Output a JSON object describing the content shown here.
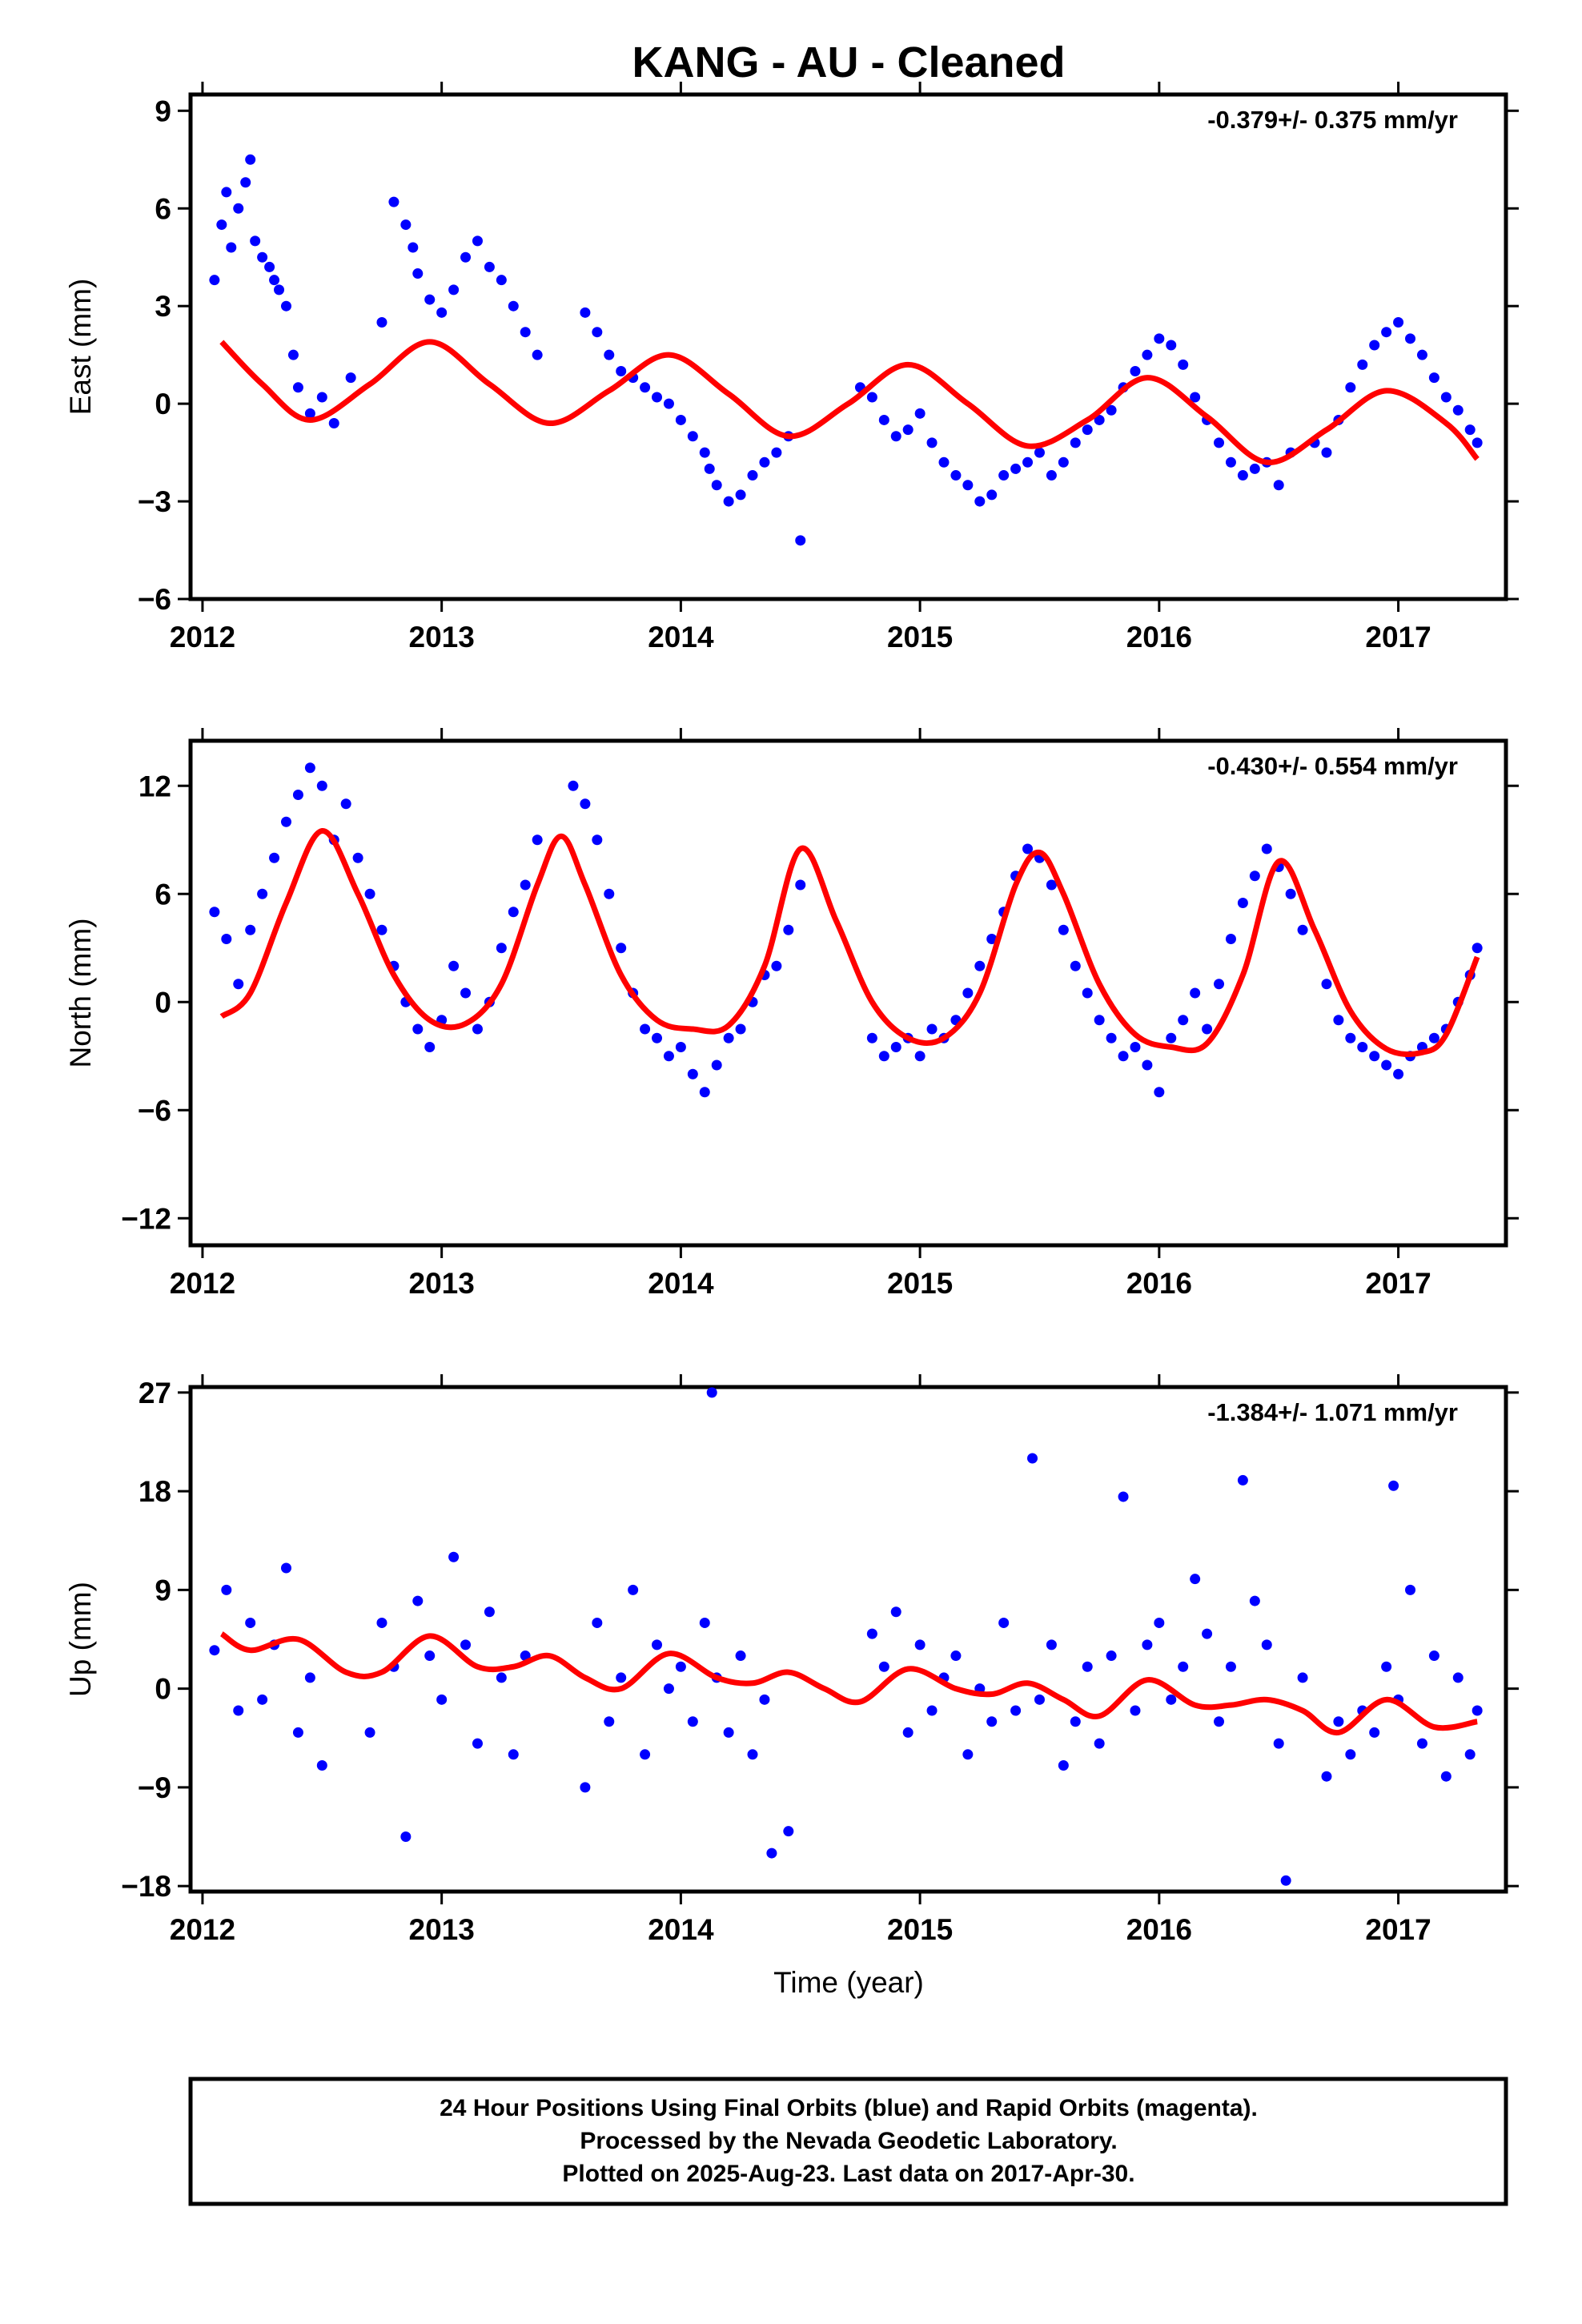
{
  "title": "KANG  - AU - Cleaned",
  "xlabel": "Time (year)",
  "footer": {
    "line1": "24 Hour Positions Using Final Orbits (blue) and Rapid Orbits (magenta).",
    "line2": "Processed by the Nevada Geodetic Laboratory.",
    "line3": "Plotted on 2025-Aug-23. Last data on 2017-Apr-30."
  },
  "colors": {
    "points": "#0000ff",
    "fit": "#ff0000",
    "frame": "#000000"
  },
  "chart_data": [
    {
      "type": "scatter",
      "ylabel": "East (mm)",
      "rate": "-0.379+/- 0.375 mm/yr",
      "xlim": [
        2011.95,
        2017.45
      ],
      "ylim": [
        -6,
        9.5
      ],
      "xticks": [
        2012,
        2013,
        2014,
        2015,
        2016,
        2017
      ],
      "yticks": [
        -6,
        -3,
        0,
        3,
        6,
        9
      ],
      "ytick_labels": [
        "−6",
        "−3",
        "0",
        "3",
        "6",
        "9"
      ],
      "series": [
        {
          "kind": "points",
          "x": [
            2012.05,
            2012.08,
            2012.1,
            2012.12,
            2012.15,
            2012.18,
            2012.2,
            2012.22,
            2012.25,
            2012.28,
            2012.3,
            2012.32,
            2012.35,
            2012.38,
            2012.4,
            2012.45,
            2012.5,
            2012.55,
            2012.62,
            2012.75,
            2012.8,
            2012.85,
            2012.88,
            2012.9,
            2012.95,
            2013.0,
            2013.05,
            2013.1,
            2013.15,
            2013.2,
            2013.25,
            2013.3,
            2013.35,
            2013.4,
            2013.6,
            2013.65,
            2013.7,
            2013.75,
            2013.8,
            2013.85,
            2013.9,
            2013.95,
            2014.0,
            2014.05,
            2014.1,
            2014.12,
            2014.15,
            2014.2,
            2014.25,
            2014.3,
            2014.35,
            2014.4,
            2014.45,
            2014.5,
            2014.75,
            2014.8,
            2014.85,
            2014.9,
            2014.95,
            2015.0,
            2015.05,
            2015.1,
            2015.15,
            2015.2,
            2015.25,
            2015.3,
            2015.35,
            2015.4,
            2015.45,
            2015.5,
            2015.55,
            2015.6,
            2015.65,
            2015.7,
            2015.75,
            2015.8,
            2015.85,
            2015.9,
            2015.95,
            2016.0,
            2016.05,
            2016.1,
            2016.15,
            2016.2,
            2016.25,
            2016.3,
            2016.35,
            2016.4,
            2016.45,
            2016.5,
            2016.55,
            2016.65,
            2016.7,
            2016.75,
            2016.8,
            2016.85,
            2016.9,
            2016.95,
            2017.0,
            2017.05,
            2017.1,
            2017.15,
            2017.2,
            2017.25,
            2017.3,
            2017.33
          ],
          "y": [
            3.8,
            5.5,
            6.5,
            4.8,
            6.0,
            6.8,
            7.5,
            5.0,
            4.5,
            4.2,
            3.8,
            3.5,
            3.0,
            1.5,
            0.5,
            -0.3,
            0.2,
            -0.6,
            0.8,
            2.5,
            6.2,
            5.5,
            4.8,
            4.0,
            3.2,
            2.8,
            3.5,
            4.5,
            5.0,
            4.2,
            3.8,
            3.0,
            2.2,
            1.5,
            2.8,
            2.2,
            1.5,
            1.0,
            0.8,
            0.5,
            0.2,
            0.0,
            -0.5,
            -1.0,
            -1.5,
            -2.0,
            -2.5,
            -3.0,
            -2.8,
            -2.2,
            -1.8,
            -1.5,
            -1.0,
            -4.2,
            0.5,
            0.2,
            -0.5,
            -1.0,
            -0.8,
            -0.3,
            -1.2,
            -1.8,
            -2.2,
            -2.5,
            -3.0,
            -2.8,
            -2.2,
            -2.0,
            -1.8,
            -1.5,
            -2.2,
            -1.8,
            -1.2,
            -0.8,
            -0.5,
            -0.2,
            0.5,
            1.0,
            1.5,
            2.0,
            1.8,
            1.2,
            0.2,
            -0.5,
            -1.2,
            -1.8,
            -2.2,
            -2.0,
            -1.8,
            -2.5,
            -1.5,
            -1.2,
            -1.5,
            -0.5,
            0.5,
            1.2,
            1.8,
            2.2,
            2.5,
            2.0,
            1.5,
            0.8,
            0.2,
            -0.2,
            -0.8,
            -1.2
          ]
        },
        {
          "kind": "fit",
          "x": [
            2012.08,
            2012.25,
            2012.45,
            2012.7,
            2012.95,
            2013.2,
            2013.45,
            2013.7,
            2013.95,
            2014.2,
            2014.45,
            2014.7,
            2014.95,
            2015.2,
            2015.45,
            2015.7,
            2015.95,
            2016.2,
            2016.45,
            2016.7,
            2016.95,
            2017.2,
            2017.33
          ],
          "y": [
            1.9,
            0.6,
            -0.5,
            0.6,
            1.9,
            0.6,
            -0.6,
            0.4,
            1.5,
            0.3,
            -1.0,
            0.0,
            1.2,
            0.0,
            -1.3,
            -0.5,
            0.8,
            -0.4,
            -1.8,
            -0.8,
            0.4,
            -0.6,
            -1.7
          ]
        }
      ]
    },
    {
      "type": "scatter",
      "ylabel": "North (mm)",
      "rate": "-0.430+/- 0.554 mm/yr",
      "xlim": [
        2011.95,
        2017.45
      ],
      "ylim": [
        -13.5,
        14.5
      ],
      "xticks": [
        2012,
        2013,
        2014,
        2015,
        2016,
        2017
      ],
      "yticks": [
        -12,
        -6,
        0,
        6,
        12
      ],
      "ytick_labels": [
        "−12",
        "−6",
        "0",
        "6",
        "12"
      ],
      "series": [
        {
          "kind": "points",
          "x": [
            2012.05,
            2012.1,
            2012.15,
            2012.2,
            2012.25,
            2012.3,
            2012.35,
            2012.4,
            2012.45,
            2012.5,
            2012.55,
            2012.6,
            2012.65,
            2012.7,
            2012.75,
            2012.8,
            2012.85,
            2012.9,
            2012.95,
            2013.0,
            2013.05,
            2013.1,
            2013.15,
            2013.2,
            2013.25,
            2013.3,
            2013.35,
            2013.4,
            2013.55,
            2013.6,
            2013.65,
            2013.7,
            2013.75,
            2013.8,
            2013.85,
            2013.9,
            2013.95,
            2014.0,
            2014.05,
            2014.1,
            2014.15,
            2014.2,
            2014.25,
            2014.3,
            2014.35,
            2014.4,
            2014.45,
            2014.5,
            2014.8,
            2014.85,
            2014.9,
            2014.95,
            2015.0,
            2015.05,
            2015.1,
            2015.15,
            2015.2,
            2015.25,
            2015.3,
            2015.35,
            2015.4,
            2015.45,
            2015.5,
            2015.55,
            2015.6,
            2015.65,
            2015.7,
            2015.75,
            2015.8,
            2015.85,
            2015.9,
            2015.95,
            2016.0,
            2016.05,
            2016.1,
            2016.15,
            2016.2,
            2016.25,
            2016.3,
            2016.35,
            2016.4,
            2016.45,
            2016.5,
            2016.55,
            2016.6,
            2016.7,
            2016.75,
            2016.8,
            2016.85,
            2016.9,
            2016.95,
            2017.0,
            2017.05,
            2017.1,
            2017.15,
            2017.2,
            2017.25,
            2017.3,
            2017.33
          ],
          "y": [
            5.0,
            3.5,
            1.0,
            4.0,
            6.0,
            8.0,
            10.0,
            11.5,
            13.0,
            12.0,
            9.0,
            11.0,
            8.0,
            6.0,
            4.0,
            2.0,
            0.0,
            -1.5,
            -2.5,
            -1.0,
            2.0,
            0.5,
            -1.5,
            0.0,
            3.0,
            5.0,
            6.5,
            9.0,
            12.0,
            11.0,
            9.0,
            6.0,
            3.0,
            0.5,
            -1.5,
            -2.0,
            -3.0,
            -2.5,
            -4.0,
            -5.0,
            -3.5,
            -2.0,
            -1.5,
            0.0,
            1.5,
            2.0,
            4.0,
            6.5,
            -2.0,
            -3.0,
            -2.5,
            -2.0,
            -3.0,
            -1.5,
            -2.0,
            -1.0,
            0.5,
            2.0,
            3.5,
            5.0,
            7.0,
            8.5,
            8.0,
            6.5,
            4.0,
            2.0,
            0.5,
            -1.0,
            -2.0,
            -3.0,
            -2.5,
            -3.5,
            -5.0,
            -2.0,
            -1.0,
            0.5,
            -1.5,
            1.0,
            3.5,
            5.5,
            7.0,
            8.5,
            7.5,
            6.0,
            4.0,
            1.0,
            -1.0,
            -2.0,
            -2.5,
            -3.0,
            -3.5,
            -4.0,
            -3.0,
            -2.5,
            -2.0,
            -1.5,
            0.0,
            1.5,
            3.0
          ]
        },
        {
          "kind": "fit",
          "x": [
            2012.08,
            2012.2,
            2012.35,
            2012.5,
            2012.65,
            2012.8,
            2012.95,
            2013.1,
            2013.25,
            2013.4,
            2013.5,
            2013.6,
            2013.75,
            2013.9,
            2014.05,
            2014.2,
            2014.35,
            2014.5,
            2014.65,
            2014.8,
            2014.95,
            2015.1,
            2015.25,
            2015.4,
            2015.5,
            2015.6,
            2015.75,
            2015.9,
            2016.05,
            2016.2,
            2016.35,
            2016.5,
            2016.65,
            2016.8,
            2016.95,
            2017.1,
            2017.2,
            2017.33
          ],
          "y": [
            -0.8,
            0.5,
            5.5,
            9.5,
            6.0,
            1.5,
            -1.0,
            -1.2,
            1.0,
            6.5,
            9.2,
            6.5,
            1.5,
            -1.0,
            -1.5,
            -1.3,
            2.0,
            8.5,
            4.5,
            0.0,
            -2.0,
            -2.0,
            0.5,
            6.5,
            8.3,
            6.0,
            1.0,
            -1.8,
            -2.5,
            -2.3,
            1.5,
            7.8,
            4.0,
            -0.5,
            -2.6,
            -2.8,
            -1.8,
            2.5
          ]
        }
      ]
    },
    {
      "type": "scatter",
      "ylabel": "Up (mm)",
      "rate": "-1.384+/- 1.071 mm/yr",
      "xlim": [
        2011.95,
        2017.45
      ],
      "ylim": [
        -18.5,
        27.5
      ],
      "xticks": [
        2012,
        2013,
        2014,
        2015,
        2016,
        2017
      ],
      "yticks": [
        -18,
        -9,
        0,
        9,
        18,
        27
      ],
      "ytick_labels": [
        "−18",
        "−9",
        "0",
        "9",
        "18",
        "27"
      ],
      "series": [
        {
          "kind": "points",
          "x": [
            2012.05,
            2012.1,
            2012.15,
            2012.2,
            2012.25,
            2012.3,
            2012.35,
            2012.4,
            2012.45,
            2012.5,
            2012.7,
            2012.75,
            2012.8,
            2012.85,
            2012.9,
            2012.95,
            2013.0,
            2013.05,
            2013.1,
            2013.15,
            2013.2,
            2013.25,
            2013.3,
            2013.35,
            2013.6,
            2013.65,
            2013.7,
            2013.75,
            2013.8,
            2013.85,
            2013.9,
            2013.95,
            2014.0,
            2014.05,
            2014.1,
            2014.13,
            2014.15,
            2014.2,
            2014.25,
            2014.3,
            2014.35,
            2014.38,
            2014.45,
            2014.8,
            2014.85,
            2014.9,
            2014.95,
            2015.0,
            2015.05,
            2015.1,
            2015.15,
            2015.2,
            2015.25,
            2015.3,
            2015.35,
            2015.4,
            2015.47,
            2015.5,
            2015.55,
            2015.6,
            2015.65,
            2015.7,
            2015.75,
            2015.8,
            2015.85,
            2015.9,
            2015.95,
            2016.0,
            2016.05,
            2016.1,
            2016.15,
            2016.2,
            2016.25,
            2016.3,
            2016.35,
            2016.4,
            2016.45,
            2016.5,
            2016.53,
            2016.6,
            2016.7,
            2016.75,
            2016.8,
            2016.85,
            2016.9,
            2016.95,
            2016.98,
            2017.0,
            2017.05,
            2017.1,
            2017.15,
            2017.2,
            2017.25,
            2017.3,
            2017.33
          ],
          "y": [
            3.5,
            9.0,
            -2.0,
            6.0,
            -1.0,
            4.0,
            11.0,
            -4.0,
            1.0,
            -7.0,
            -4.0,
            6.0,
            2.0,
            -13.5,
            8.0,
            3.0,
            -1.0,
            12.0,
            4.0,
            -5.0,
            7.0,
            1.0,
            -6.0,
            3.0,
            -9.0,
            6.0,
            -3.0,
            1.0,
            9.0,
            -6.0,
            4.0,
            0.0,
            2.0,
            -3.0,
            6.0,
            27.0,
            1.0,
            -4.0,
            3.0,
            -6.0,
            -1.0,
            -15.0,
            -13.0,
            5.0,
            2.0,
            7.0,
            -4.0,
            4.0,
            -2.0,
            1.0,
            3.0,
            -6.0,
            0.0,
            -3.0,
            6.0,
            -2.0,
            21.0,
            -1.0,
            4.0,
            -7.0,
            -3.0,
            2.0,
            -5.0,
            3.0,
            17.5,
            -2.0,
            4.0,
            6.0,
            -1.0,
            2.0,
            10.0,
            5.0,
            -3.0,
            2.0,
            19.0,
            8.0,
            4.0,
            -5.0,
            -17.5,
            1.0,
            -8.0,
            -3.0,
            -6.0,
            -2.0,
            -4.0,
            2.0,
            18.5,
            -1.0,
            9.0,
            -5.0,
            3.0,
            -8.0,
            1.0,
            -6.0,
            -2.0
          ]
        },
        {
          "kind": "fit",
          "x": [
            2012.08,
            2012.2,
            2012.4,
            2012.6,
            2012.75,
            2012.95,
            2013.15,
            2013.3,
            2013.45,
            2013.6,
            2013.75,
            2013.95,
            2014.15,
            2014.3,
            2014.45,
            2014.6,
            2014.75,
            2014.95,
            2015.15,
            2015.3,
            2015.45,
            2015.6,
            2015.75,
            2015.95,
            2016.15,
            2016.3,
            2016.45,
            2016.6,
            2016.75,
            2016.95,
            2017.15,
            2017.33
          ],
          "y": [
            5.0,
            3.5,
            4.5,
            1.5,
            1.5,
            4.8,
            2.0,
            2.0,
            3.0,
            1.0,
            0.0,
            3.2,
            1.0,
            0.5,
            1.5,
            0.0,
            -1.2,
            1.8,
            0.0,
            -0.5,
            0.5,
            -1.0,
            -2.5,
            0.8,
            -1.5,
            -1.5,
            -1.0,
            -2.0,
            -4.0,
            -1.0,
            -3.5,
            -3.0
          ]
        }
      ]
    }
  ]
}
